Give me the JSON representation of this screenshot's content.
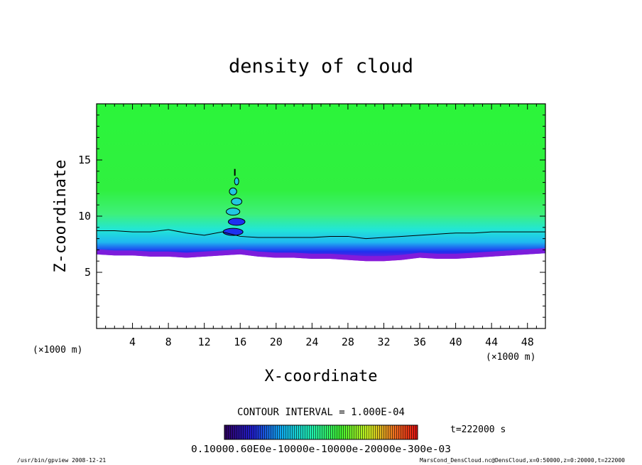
{
  "chart_data": {
    "type": "heatmap",
    "title": "density of cloud",
    "xlabel": "X-coordinate",
    "ylabel": "Z-coordinate",
    "x_unit": "(×1000 m)",
    "y_unit": "(×1000 m)",
    "xlim": [
      0,
      50
    ],
    "ylim": [
      0,
      20
    ],
    "x_ticks": [
      4,
      8,
      12,
      16,
      20,
      24,
      28,
      32,
      36,
      40,
      44,
      48
    ],
    "y_ticks": [
      5,
      10,
      15
    ],
    "grid": false,
    "contour_interval_text": "CONTOUR INTERVAL = 1.000E-04",
    "time_label": "t=222000 s",
    "colorbar_labels_text": "0.10000.60E0e-10000e-10000e-20000e-300e-03",
    "colorbar_range": [
      0.0001,
      0.0003
    ],
    "cloud_base_profile": {
      "x": [
        0,
        2,
        4,
        6,
        8,
        10,
        12,
        14,
        16,
        18,
        20,
        22,
        24,
        26,
        28,
        30,
        32,
        34,
        36,
        38,
        40,
        42,
        44,
        46,
        48,
        50
      ],
      "z_bottom": [
        6.6,
        6.5,
        6.5,
        6.4,
        6.4,
        6.3,
        6.4,
        6.5,
        6.6,
        6.4,
        6.3,
        6.3,
        6.2,
        6.2,
        6.1,
        6.0,
        6.0,
        6.1,
        6.3,
        6.2,
        6.2,
        6.3,
        6.4,
        6.5,
        6.6,
        6.7
      ],
      "z_top_contour": [
        8.7,
        8.7,
        8.6,
        8.6,
        8.8,
        8.5,
        8.3,
        8.6,
        8.2,
        8.1,
        8.1,
        8.1,
        8.1,
        8.2,
        8.2,
        8.0,
        8.1,
        8.2,
        8.3,
        8.4,
        8.5,
        8.5,
        8.6,
        8.6,
        8.6,
        8.6
      ]
    },
    "convective_plume": {
      "x_center": 15.4,
      "z_top": 14.2
    }
  },
  "footer": {
    "left": "/usr/bin/gpview  2008-12-21",
    "right": "MarsCond_DensCloud.nc@DensCloud,x=0:50000,z=0:20000,t=222000"
  },
  "colors": {
    "upper_green": "#2bf53a",
    "lower_cyan": "#22f0d8",
    "base_blue": "#1e2cf0",
    "bottom_purple": "#8a1ad8"
  }
}
